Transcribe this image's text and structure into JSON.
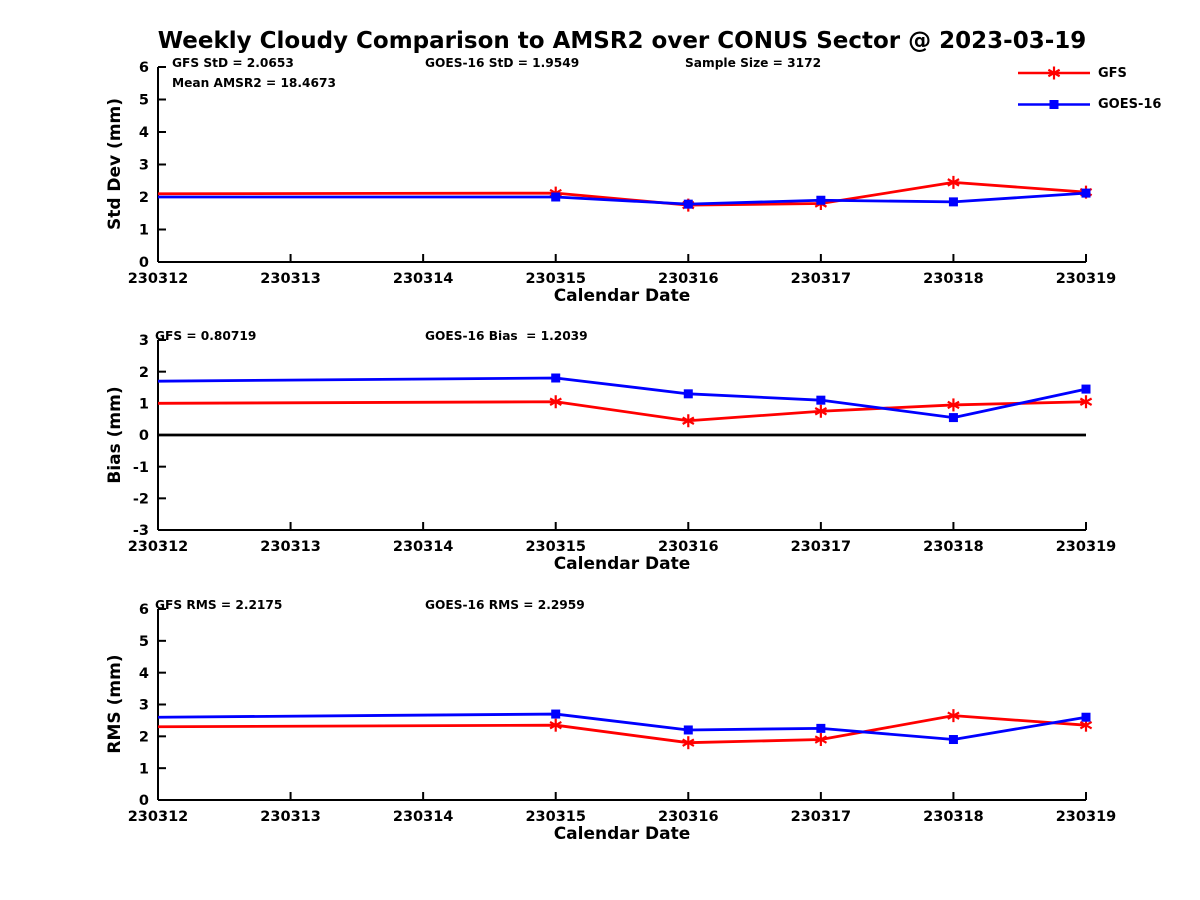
{
  "title": "Weekly Cloudy Comparison to AMSR2 over CONUS Sector @ 2023-03-19",
  "colors": {
    "gfs": "#ff0000",
    "goes16": "#0000ff",
    "axis": "#000000",
    "zero_line": "#000000"
  },
  "legend": {
    "items": [
      {
        "label": "GFS",
        "color": "#ff0000",
        "marker": "asterisk"
      },
      {
        "label": "GOES-16",
        "color": "#0000ff",
        "marker": "square"
      }
    ]
  },
  "chart_data": [
    {
      "type": "line",
      "ylabel": "Std Dev (mm)",
      "xlabel": "Calendar Date",
      "ylim": [
        0,
        6
      ],
      "yticks": [
        0,
        1,
        2,
        3,
        4,
        5,
        6
      ],
      "xlim": [
        230312,
        230319
      ],
      "xtick_labels": [
        "230312",
        "230313",
        "230314",
        "230315",
        "230316",
        "230317",
        "230318",
        "230319"
      ],
      "grid": false,
      "legend_position": "outside-top-right",
      "zero_line": false,
      "marker_skip_first": true,
      "annotations": [
        {
          "text": "GFS StD = 2.0653"
        },
        {
          "text": "GOES-16 StD = 1.9549"
        },
        {
          "text": "Sample Size = 3172"
        },
        {
          "text": "Mean AMSR2 = 18.4673"
        }
      ],
      "x": [
        230312,
        230315,
        230316,
        230317,
        230318,
        230319
      ],
      "series": [
        {
          "name": "GFS",
          "color": "#ff0000",
          "marker": "asterisk",
          "values": [
            2.1,
            2.12,
            1.75,
            1.8,
            2.45,
            2.15
          ]
        },
        {
          "name": "GOES-16",
          "color": "#0000ff",
          "marker": "square",
          "values": [
            2.0,
            2.0,
            1.78,
            1.9,
            1.85,
            2.12
          ]
        }
      ]
    },
    {
      "type": "line",
      "ylabel": "Bias (mm)",
      "xlabel": "Calendar Date",
      "ylim": [
        -3,
        3
      ],
      "yticks": [
        -3,
        -2,
        -1,
        0,
        1,
        2,
        3
      ],
      "xlim": [
        230312,
        230319
      ],
      "xtick_labels": [
        "230312",
        "230313",
        "230314",
        "230315",
        "230316",
        "230317",
        "230318",
        "230319"
      ],
      "grid": false,
      "zero_line": true,
      "marker_skip_first": true,
      "annotations": [
        {
          "text": "GFS = 0.80719"
        },
        {
          "text": "GOES-16 Bias  = 1.2039"
        }
      ],
      "x": [
        230312,
        230315,
        230316,
        230317,
        230318,
        230319
      ],
      "series": [
        {
          "name": "GFS",
          "color": "#ff0000",
          "marker": "asterisk",
          "values": [
            1.0,
            1.05,
            0.45,
            0.75,
            0.95,
            1.05
          ]
        },
        {
          "name": "GOES-16",
          "color": "#0000ff",
          "marker": "square",
          "values": [
            1.7,
            1.8,
            1.3,
            1.1,
            0.55,
            1.45
          ]
        }
      ]
    },
    {
      "type": "line",
      "ylabel": "RMS (mm)",
      "xlabel": "Calendar Date",
      "ylim": [
        0,
        6
      ],
      "yticks": [
        0,
        1,
        2,
        3,
        4,
        5,
        6
      ],
      "xlim": [
        230312,
        230319
      ],
      "xtick_labels": [
        "230312",
        "230313",
        "230314",
        "230315",
        "230316",
        "230317",
        "230318",
        "230319"
      ],
      "grid": false,
      "zero_line": false,
      "marker_skip_first": true,
      "annotations": [
        {
          "text": "GFS RMS = 2.2175"
        },
        {
          "text": "GOES-16 RMS = 2.2959"
        }
      ],
      "x": [
        230312,
        230315,
        230316,
        230317,
        230318,
        230319
      ],
      "series": [
        {
          "name": "GFS",
          "color": "#ff0000",
          "marker": "asterisk",
          "values": [
            2.3,
            2.35,
            1.8,
            1.9,
            2.65,
            2.35
          ]
        },
        {
          "name": "GOES-16",
          "color": "#0000ff",
          "marker": "square",
          "values": [
            2.6,
            2.7,
            2.2,
            2.25,
            1.9,
            2.6
          ]
        }
      ]
    }
  ]
}
